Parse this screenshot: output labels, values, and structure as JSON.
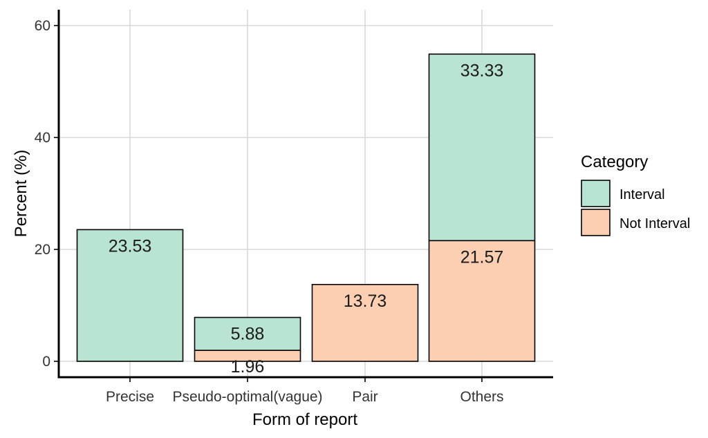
{
  "chart_data": {
    "type": "bar",
    "stacked": true,
    "title": "",
    "xlabel": "Form of report",
    "ylabel": "Percent (%)",
    "ylim": [
      0,
      60
    ],
    "yticks": [
      0,
      20,
      40,
      60
    ],
    "grid": true,
    "legend": {
      "title": "Category",
      "position": "right"
    },
    "categories": [
      "Precise",
      "Pseudo-optimal(vague)",
      "Pair",
      "Others"
    ],
    "series": [
      {
        "name": "Not Interval",
        "color": "#fccfb2",
        "values": [
          0,
          1.96,
          13.73,
          21.57
        ],
        "labels": [
          "",
          "1.96",
          "13.73",
          "21.57"
        ]
      },
      {
        "name": "Interval",
        "color": "#b9e4d1",
        "values": [
          23.53,
          5.88,
          0,
          33.33
        ],
        "labels": [
          "23.53",
          "5.88",
          "",
          "33.33"
        ]
      }
    ],
    "legend_order": [
      "Interval",
      "Not Interval"
    ]
  }
}
